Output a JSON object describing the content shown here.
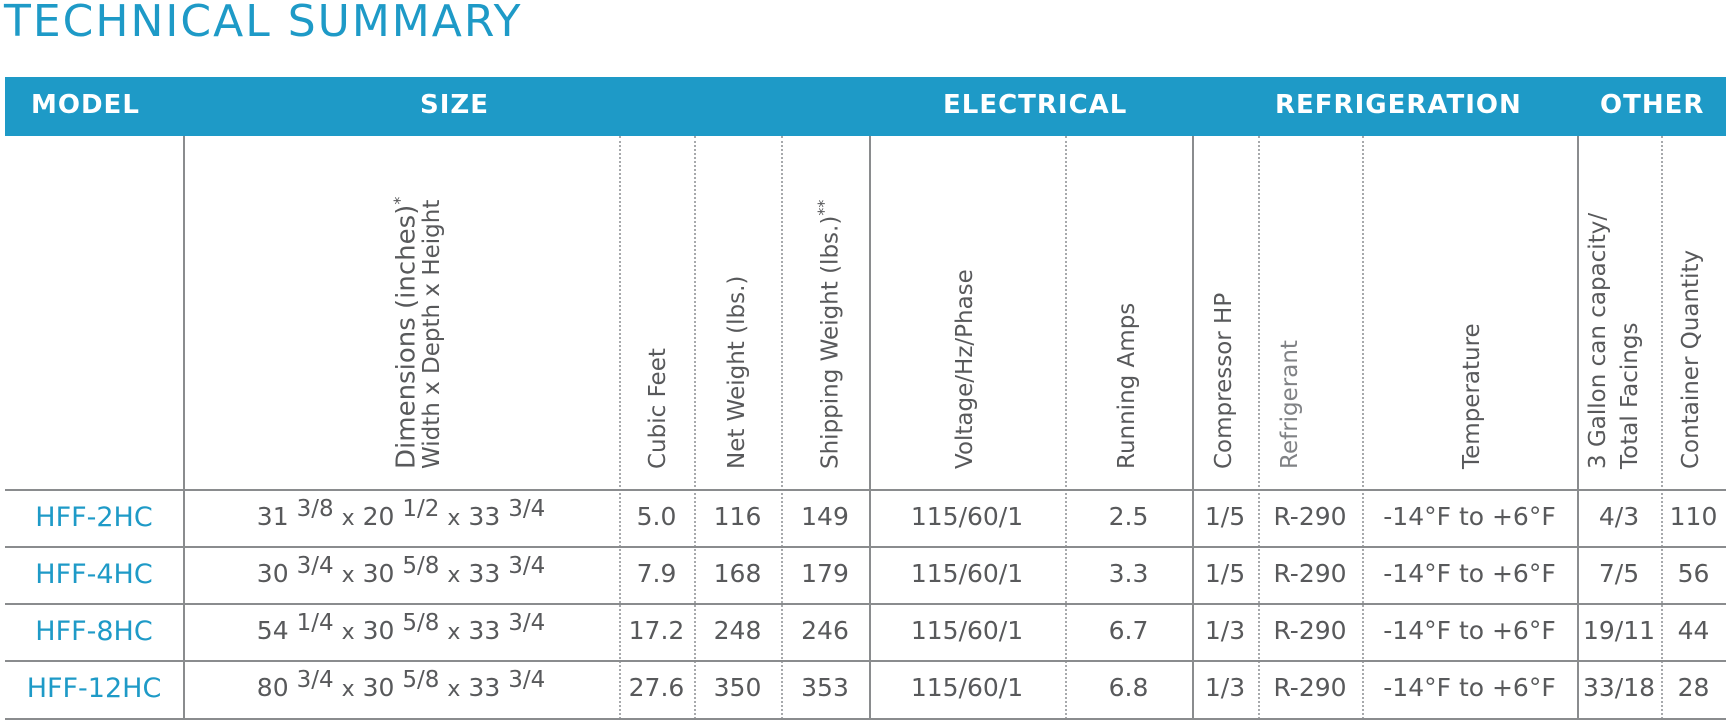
{
  "title": "TECHNICAL SUMMARY",
  "groups": {
    "model": "MODEL",
    "size": "SIZE",
    "electrical": "ELECTRICAL",
    "refrigeration": "REFRIGERATION",
    "other": "OTHER"
  },
  "columns": {
    "dimensions_line1": "Dimensions (inches)",
    "dimensions_sup": "*",
    "dimensions_line2": "Width x Depth x Height",
    "cubic_feet": "Cubic Feet",
    "net_weight": "Net Weight (lbs.)",
    "shipping_weight": "Shipping Weight (lbs.)",
    "shipping_weight_sup": "**",
    "voltage": "Voltage/Hz/Phase",
    "running_amps": "Running Amps",
    "compressor_hp": "Compressor HP",
    "refrigerant": "Refrigerant",
    "temperature": "Temperature",
    "capacity_line1": "3 Gallon can capacity/",
    "capacity_line2": "Total Facings",
    "container_quantity": "Container Quantity"
  },
  "times_sign": "x",
  "rows": [
    {
      "model": "HFF-2HC",
      "width_whole": "31",
      "width_frac": "3/8",
      "depth_whole": "20",
      "depth_frac": "1/2",
      "height_whole": "33",
      "height_frac": "3/4",
      "cubic_feet": "5.0",
      "net_weight": "116",
      "shipping_weight": "149",
      "voltage": "115/60/1",
      "running_amps": "2.5",
      "compressor_hp": "1/5",
      "refrigerant": "R-290",
      "temperature": "-14°F to +6°F",
      "capacity": "4/3",
      "container_quantity": "110"
    },
    {
      "model": "HFF-4HC",
      "width_whole": "30",
      "width_frac": "3/4",
      "depth_whole": "30",
      "depth_frac": "5/8",
      "height_whole": "33",
      "height_frac": "3/4",
      "cubic_feet": "7.9",
      "net_weight": "168",
      "shipping_weight": "179",
      "voltage": "115/60/1",
      "running_amps": "3.3",
      "compressor_hp": "1/5",
      "refrigerant": "R-290",
      "temperature": "-14°F to +6°F",
      "capacity": "7/5",
      "container_quantity": "56"
    },
    {
      "model": "HFF-8HC",
      "width_whole": "54",
      "width_frac": "1/4",
      "depth_whole": "30",
      "depth_frac": "5/8",
      "height_whole": "33",
      "height_frac": "3/4",
      "cubic_feet": "17.2",
      "net_weight": "248",
      "shipping_weight": "246",
      "voltage": "115/60/1",
      "running_amps": "6.7",
      "compressor_hp": "1/3",
      "refrigerant": "R-290",
      "temperature": "-14°F to +6°F",
      "capacity": "19/11",
      "container_quantity": "44"
    },
    {
      "model": "HFF-12HC",
      "width_whole": "80",
      "width_frac": "3/4",
      "depth_whole": "30",
      "depth_frac": "5/8",
      "height_whole": "33",
      "height_frac": "3/4",
      "cubic_feet": "27.6",
      "net_weight": "350",
      "shipping_weight": "353",
      "voltage": "115/60/1",
      "running_amps": "6.8",
      "compressor_hp": "1/3",
      "refrigerant": "R-290",
      "temperature": "-14°F to +6°F",
      "capacity": "33/18",
      "container_quantity": "28"
    }
  ],
  "colors": {
    "accent": "#1e9ac7",
    "text": "#58595b",
    "rule": "#8a8c8e"
  }
}
